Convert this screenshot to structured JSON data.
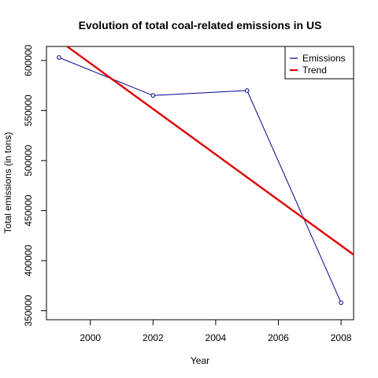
{
  "chart_data": {
    "type": "line",
    "title": "Evolution of total coal-related emissions in US",
    "xlabel": "Year",
    "ylabel": "Total emissions (in tons)",
    "xlim": [
      1998.6,
      2008.4
    ],
    "ylim": [
      341000,
      614000
    ],
    "x_ticks": [
      2000,
      2002,
      2004,
      2006,
      2008
    ],
    "x_tick_labels": [
      "2000",
      "2002",
      "2004",
      "2006",
      "2008"
    ],
    "y_ticks": [
      350000,
      400000,
      450000,
      500000,
      550000,
      600000
    ],
    "y_tick_labels": [
      "350000",
      "400000",
      "450000",
      "500000",
      "550000",
      "600000"
    ],
    "grid": false,
    "legend_position": "top-right",
    "series": [
      {
        "name": "Emissions",
        "color": "#00008b",
        "marker": "open-circle",
        "x": [
          1999,
          2002,
          2005,
          2008
        ],
        "y": [
          603000,
          565000,
          570000,
          358000
        ]
      },
      {
        "name": "Trend",
        "color": "#dd0000",
        "line": "regression",
        "x": [
          1998.6,
          2008.4
        ],
        "y": [
          629000,
          406000
        ]
      }
    ],
    "legend": [
      {
        "label": "Emissions",
        "color": "#00008b"
      },
      {
        "label": "Trend",
        "color": "#dd0000"
      }
    ]
  }
}
